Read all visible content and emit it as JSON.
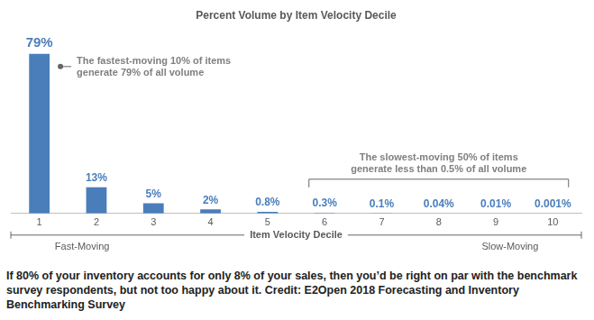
{
  "chart_data": {
    "type": "bar",
    "title": "Percent Volume by Item Velocity Decile",
    "x_label": "Item Velocity Decile",
    "categories": [
      "1",
      "2",
      "3",
      "4",
      "5",
      "6",
      "7",
      "8",
      "9",
      "10"
    ],
    "values": [
      79,
      13,
      5,
      2,
      0.8,
      0.3,
      0.1,
      0.04,
      0.01,
      0.001
    ],
    "value_labels": [
      "79%",
      "13%",
      "5%",
      "2%",
      "0.8%",
      "0.3%",
      "0.1%",
      "0.04%",
      "0.01%",
      "0.001%"
    ],
    "color": "#4a7ebb",
    "ylim": [
      0,
      85
    ],
    "grid": false,
    "data_labels": true,
    "tick_labels": "x",
    "annotations": [
      {
        "text": [
          "The fastest-moving 10% of items",
          "generate 79% of all volume"
        ]
      },
      {
        "text": [
          "The slowest-moving 50% of items",
          "generate less than 0.5% of all volume"
        ]
      }
    ],
    "groups": [
      "Fast-Moving",
      "Slow-Moving"
    ],
    "caption": "If 80% of your inventory accounts for only 8% of your sales, then you’d be right on par with the benchmark survey respondents, but not too happy about it. Credit: E2Open 2018 Forecasting and Inventory Benchmarking Survey"
  }
}
